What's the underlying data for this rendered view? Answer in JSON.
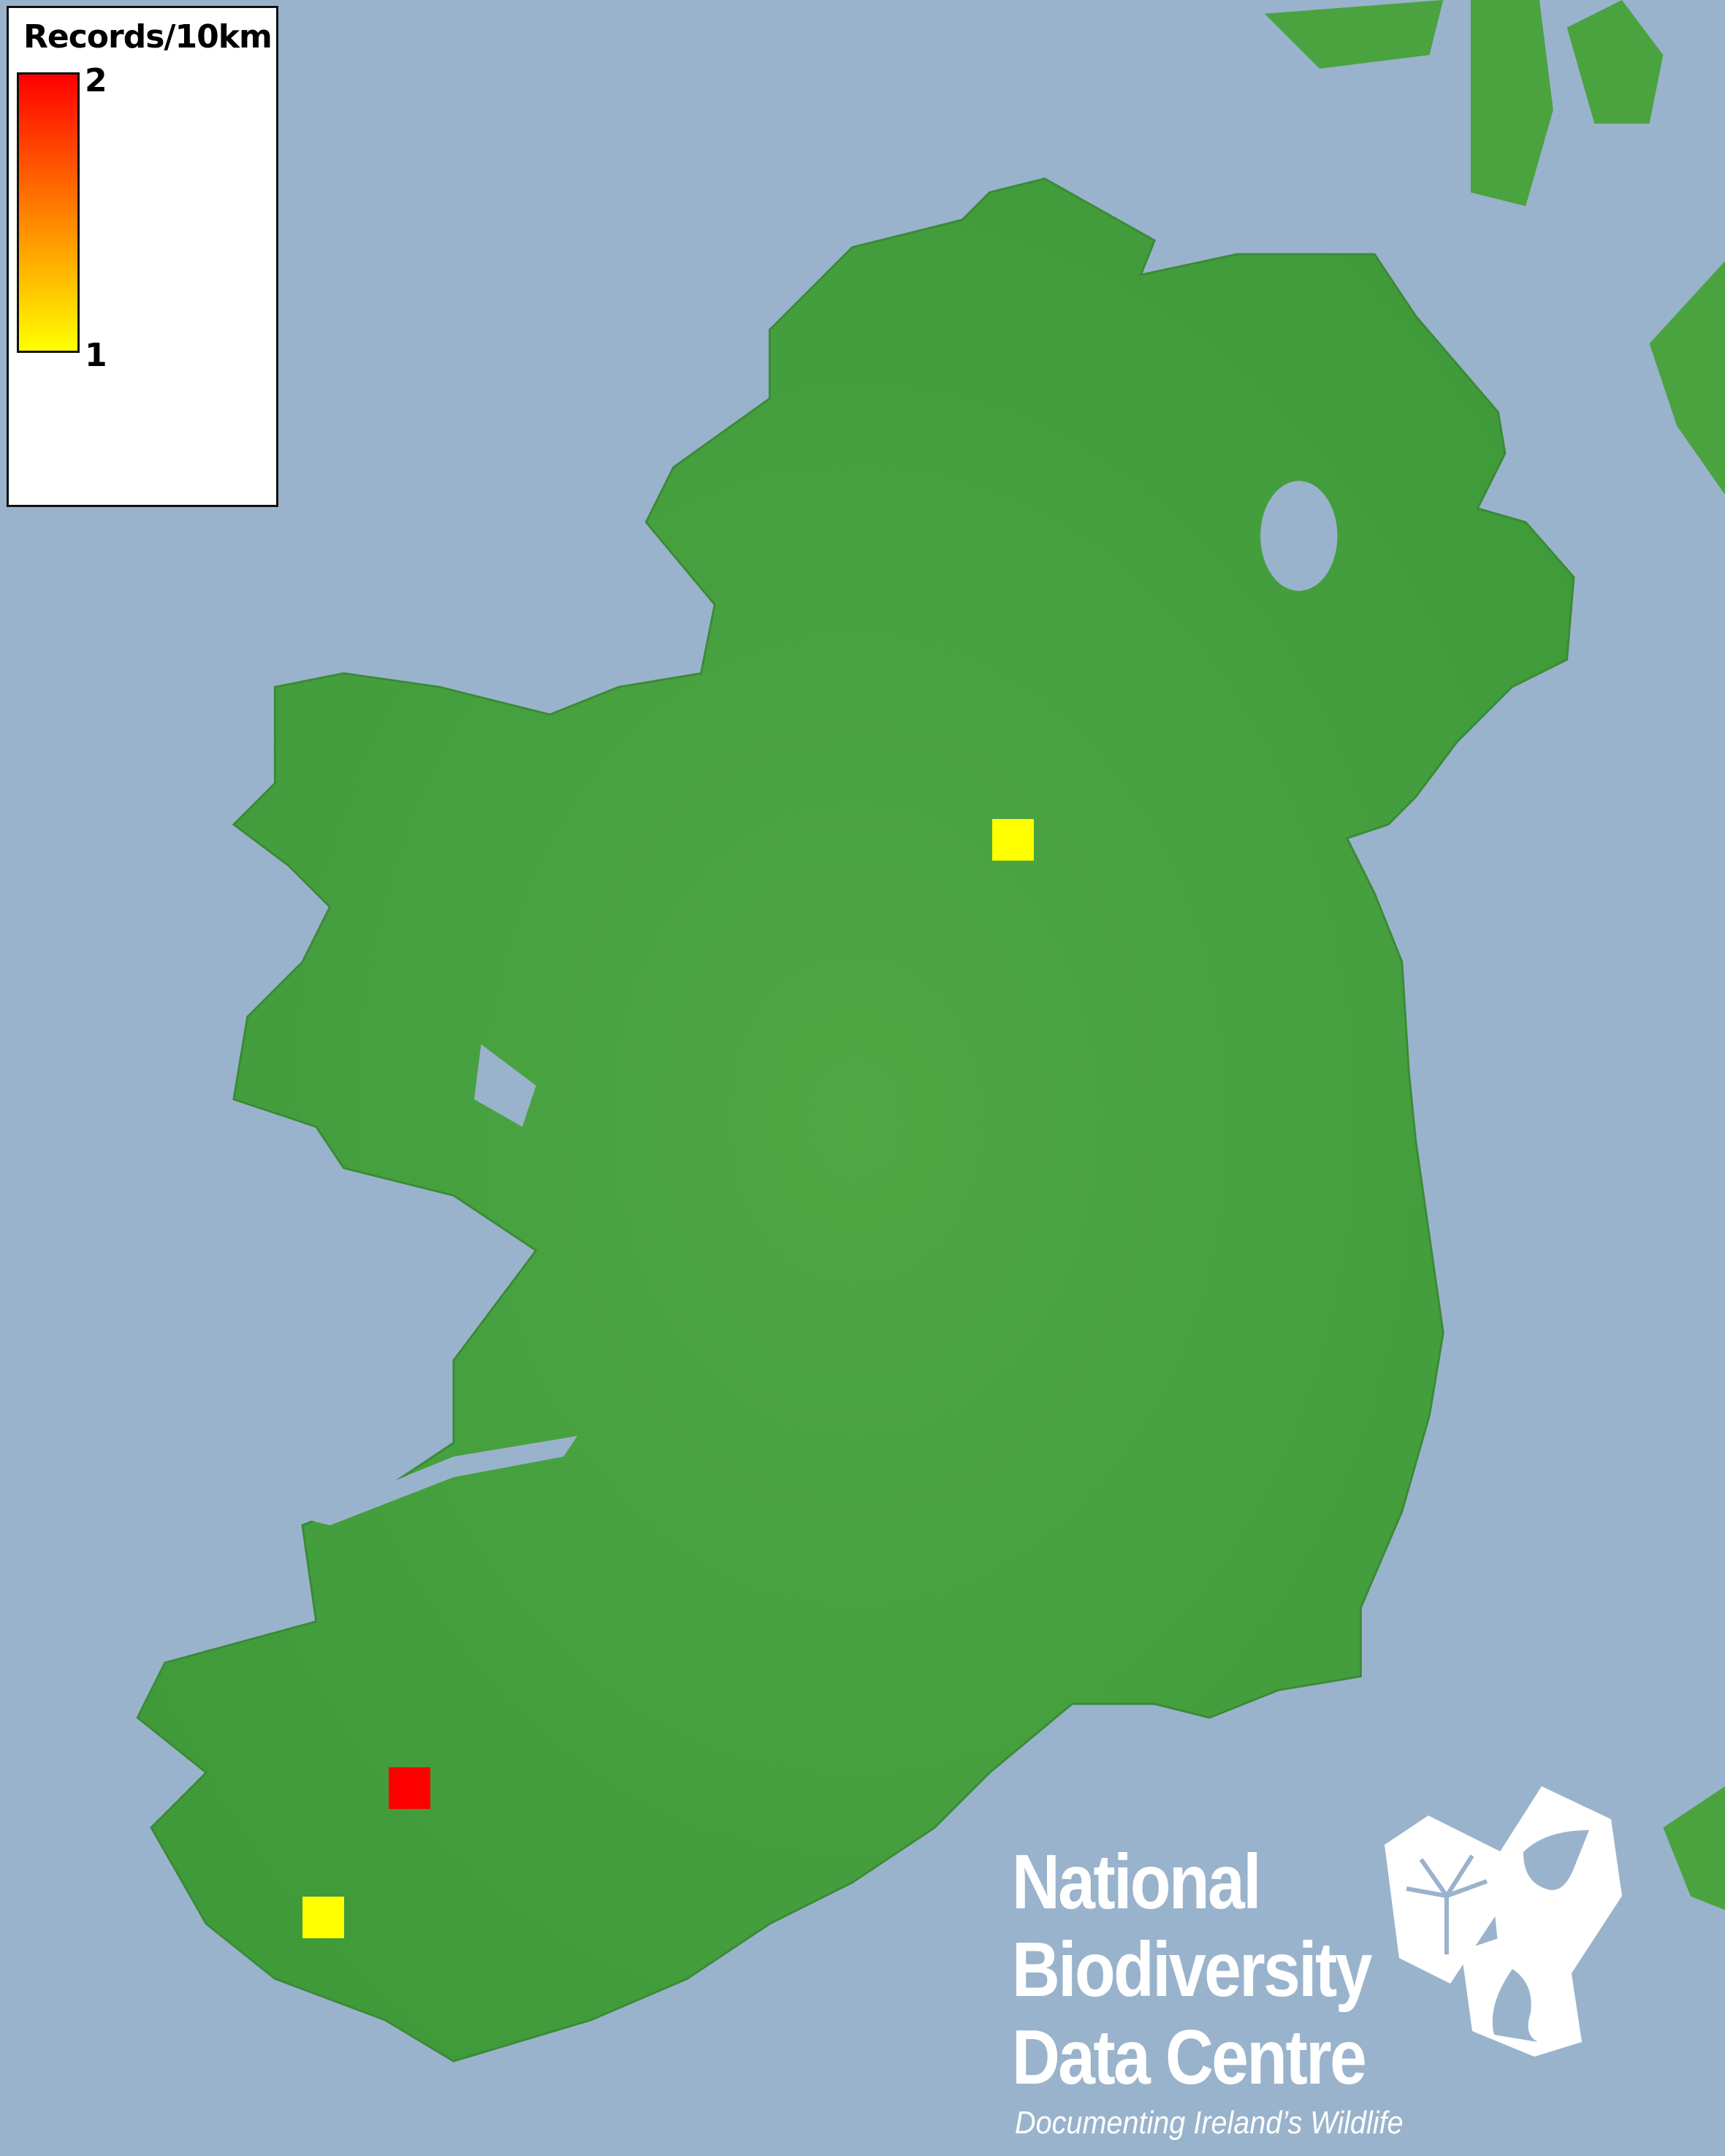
{
  "legend": {
    "title": "Records/10km",
    "max_label": "2",
    "min_label": "1",
    "color_max": "#ff0000",
    "color_mid": "#ff8000",
    "color_min": "#ffff00"
  },
  "records": [
    {
      "count": 1,
      "color": "#ffff00"
    },
    {
      "count": 2,
      "color": "#ff0000"
    },
    {
      "count": 1,
      "color": "#ffff00"
    }
  ],
  "colors": {
    "sea": "#9ab3cc",
    "land": "#4aa33f"
  },
  "logo": {
    "line1": "National",
    "line2": "Biodiversity",
    "line3": "Data Centre",
    "tagline": "Documenting Ireland’s Wildlife"
  }
}
